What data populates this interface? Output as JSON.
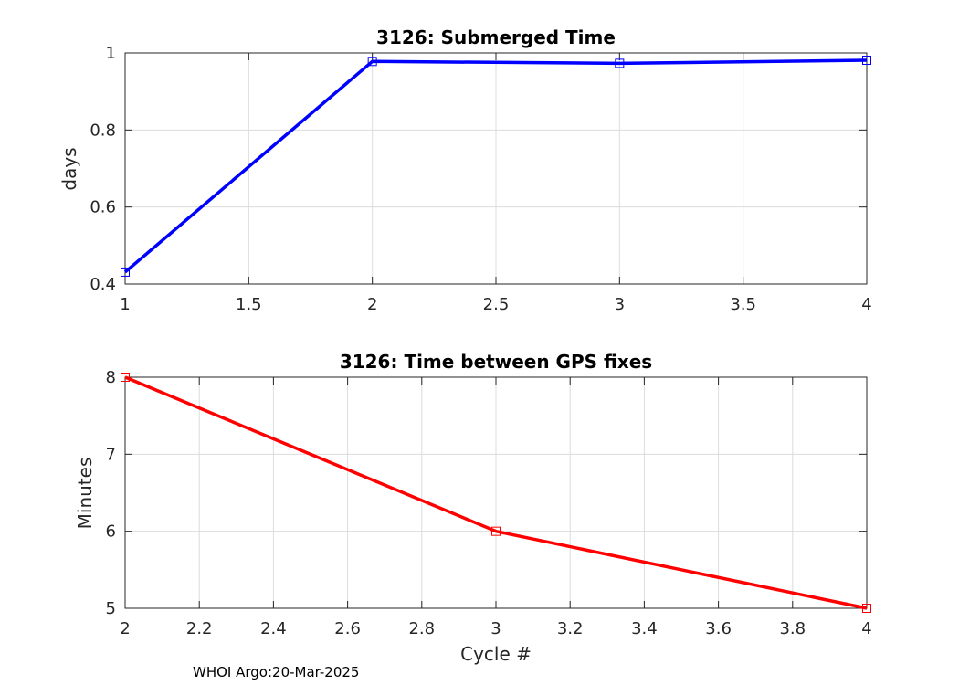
{
  "footer": "WHOI Argo:20-Mar-2025",
  "chart_data": [
    {
      "type": "line",
      "title": "3126: Submerged Time",
      "xlabel": "",
      "ylabel": "days",
      "xlim": [
        1,
        4
      ],
      "ylim": [
        0.4,
        1
      ],
      "xticks": [
        1,
        1.5,
        2,
        2.5,
        3,
        3.5,
        4
      ],
      "xtick_labels": [
        "1",
        "1.5",
        "2",
        "2.5",
        "3",
        "3.5",
        "4"
      ],
      "yticks": [
        0.4,
        0.6,
        0.8,
        1
      ],
      "ytick_labels": [
        "0.4",
        "0.6",
        "0.8",
        "1"
      ],
      "grid": true,
      "marker": "square",
      "color": "#0000ff",
      "x": [
        1,
        2,
        3,
        4
      ],
      "y": [
        0.431,
        0.978,
        0.973,
        0.981
      ]
    },
    {
      "type": "line",
      "title": "3126: Time between GPS fixes",
      "xlabel": "Cycle #",
      "ylabel": "Minutes",
      "xlim": [
        2,
        4
      ],
      "ylim": [
        5,
        8
      ],
      "xticks": [
        2,
        2.2,
        2.4,
        2.6,
        2.8,
        3,
        3.2,
        3.4,
        3.6,
        3.8,
        4
      ],
      "xtick_labels": [
        "2",
        "2.2",
        "2.4",
        "2.6",
        "2.8",
        "3",
        "3.2",
        "3.4",
        "3.6",
        "3.8",
        "4"
      ],
      "yticks": [
        5,
        6,
        7,
        8
      ],
      "ytick_labels": [
        "5",
        "6",
        "7",
        "8"
      ],
      "grid": true,
      "marker": "square",
      "color": "#ff0000",
      "x": [
        2,
        3,
        4
      ],
      "y": [
        8,
        6,
        5
      ]
    }
  ]
}
